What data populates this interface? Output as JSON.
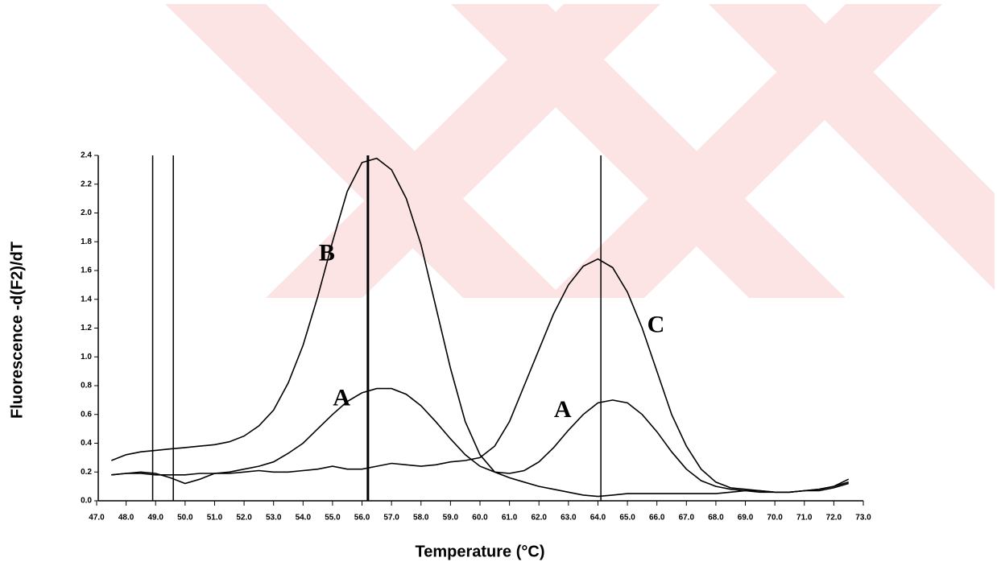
{
  "chart_data": {
    "type": "line",
    "x_label": "Temperature (°C)",
    "y_label": "Fluorescence -d(F2)/dT",
    "xlim": [
      47,
      73
    ],
    "ylim": [
      0,
      2.4
    ],
    "xticks": [
      {
        "value": 47,
        "label": "47.0"
      },
      {
        "value": 48,
        "label": "48.0"
      },
      {
        "value": 49,
        "label": "49.0"
      },
      {
        "value": 50,
        "label": "50.0"
      },
      {
        "value": 51,
        "label": "51.0"
      },
      {
        "value": 52,
        "label": "52.0"
      },
      {
        "value": 53,
        "label": "53.0"
      },
      {
        "value": 54,
        "label": "54.0"
      },
      {
        "value": 55,
        "label": "55.0"
      },
      {
        "value": 56,
        "label": "56.0"
      },
      {
        "value": 57,
        "label": "57.0"
      },
      {
        "value": 58,
        "label": "58.0"
      },
      {
        "value": 59,
        "label": "59.0"
      },
      {
        "value": 60,
        "label": "60.0"
      },
      {
        "value": 61,
        "label": "61.0"
      },
      {
        "value": 62,
        "label": "62.0"
      },
      {
        "value": 63,
        "label": "63.0"
      },
      {
        "value": 64,
        "label": "64.0"
      },
      {
        "value": 65,
        "label": "65.0"
      },
      {
        "value": 66,
        "label": "66.0"
      },
      {
        "value": 67,
        "label": "67.0"
      },
      {
        "value": 68,
        "label": "68.0"
      },
      {
        "value": 69,
        "label": "69.0"
      },
      {
        "value": 70,
        "label": "70.0"
      },
      {
        "value": 71,
        "label": "71.0"
      },
      {
        "value": 72,
        "label": "72.0"
      },
      {
        "value": 73,
        "label": "73.0"
      }
    ],
    "yticks": [
      {
        "value": 0,
        "label": "0.0"
      },
      0.2,
      0.4,
      0.6,
      0.8,
      {
        "value": 1,
        "label": "1.0"
      },
      1.2,
      1.4,
      1.6,
      1.8,
      {
        "value": 2,
        "label": "2.0"
      },
      2.2,
      2.4
    ],
    "vertical_lines": [
      48.9,
      49.6,
      56.2,
      64.1
    ],
    "x": [
      47.5,
      48,
      48.5,
      49,
      49.5,
      50,
      50.5,
      51,
      51.5,
      52,
      52.5,
      53,
      53.5,
      54,
      54.5,
      55,
      55.5,
      56,
      56.5,
      57,
      57.5,
      58,
      58.5,
      59,
      59.5,
      60,
      60.5,
      61,
      61.5,
      62,
      62.5,
      63,
      63.5,
      64,
      64.5,
      65,
      65.5,
      66,
      66.5,
      67,
      67.5,
      68,
      68.5,
      69,
      69.5,
      70,
      70.5,
      71,
      71.5,
      72,
      72.5
    ],
    "series": [
      {
        "name": "B",
        "color": "#000000",
        "values": [
          0.28,
          0.32,
          0.34,
          0.35,
          0.36,
          0.37,
          0.38,
          0.39,
          0.41,
          0.45,
          0.52,
          0.63,
          0.82,
          1.08,
          1.42,
          1.8,
          2.15,
          2.35,
          2.38,
          2.3,
          2.1,
          1.78,
          1.35,
          0.92,
          0.55,
          0.32,
          0.2,
          0.16,
          0.13,
          0.1,
          0.08,
          0.06,
          0.04,
          0.03,
          0.04,
          0.05,
          0.05,
          0.05,
          0.05,
          0.05,
          0.05,
          0.05,
          0.06,
          0.07,
          0.07,
          0.06,
          0.06,
          0.07,
          0.08,
          0.1,
          0.15
        ]
      },
      {
        "name": "A",
        "color": "#000000",
        "values": [
          0.18,
          0.19,
          0.2,
          0.19,
          0.16,
          0.12,
          0.15,
          0.19,
          0.2,
          0.22,
          0.24,
          0.27,
          0.33,
          0.4,
          0.5,
          0.6,
          0.69,
          0.75,
          0.78,
          0.78,
          0.74,
          0.66,
          0.55,
          0.43,
          0.32,
          0.24,
          0.2,
          0.19,
          0.21,
          0.27,
          0.37,
          0.49,
          0.6,
          0.68,
          0.7,
          0.68,
          0.6,
          0.48,
          0.34,
          0.22,
          0.14,
          0.1,
          0.08,
          0.07,
          0.06,
          0.06,
          0.06,
          0.07,
          0.07,
          0.09,
          0.12
        ]
      },
      {
        "name": "C",
        "color": "#000000",
        "values": [
          0.18,
          0.19,
          0.19,
          0.18,
          0.18,
          0.18,
          0.19,
          0.19,
          0.19,
          0.2,
          0.21,
          0.2,
          0.2,
          0.21,
          0.22,
          0.24,
          0.22,
          0.22,
          0.24,
          0.26,
          0.25,
          0.24,
          0.25,
          0.27,
          0.28,
          0.3,
          0.38,
          0.55,
          0.8,
          1.05,
          1.3,
          1.5,
          1.63,
          1.68,
          1.62,
          1.45,
          1.2,
          0.9,
          0.6,
          0.38,
          0.22,
          0.13,
          0.09,
          0.08,
          0.07,
          0.06,
          0.06,
          0.07,
          0.08,
          0.1,
          0.13
        ]
      }
    ]
  }
}
